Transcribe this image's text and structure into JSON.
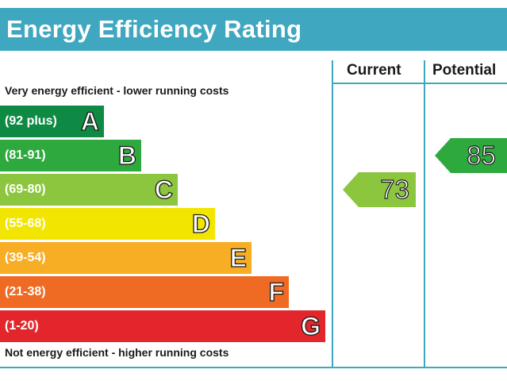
{
  "header": {
    "title": "Energy Efficiency Rating"
  },
  "columns": {
    "current_label": "Current",
    "potential_label": "Potential"
  },
  "captions": {
    "top": "Very energy efficient - lower running costs",
    "bottom": "Not energy efficient - higher running costs"
  },
  "colors": {
    "frame": "#3fa7bf"
  },
  "chart_data": {
    "type": "bar",
    "bands": [
      {
        "letter": "A",
        "range": "(92 plus)",
        "color": "#0f8a44"
      },
      {
        "letter": "B",
        "range": "(81-91)",
        "color": "#2ea93e"
      },
      {
        "letter": "C",
        "range": "(69-80)",
        "color": "#8cc63f"
      },
      {
        "letter": "D",
        "range": "(55-68)",
        "color": "#f2e600"
      },
      {
        "letter": "E",
        "range": "(39-54)",
        "color": "#f7ae24"
      },
      {
        "letter": "F",
        "range": "(21-38)",
        "color": "#ef6a22"
      },
      {
        "letter": "G",
        "range": "(1-20)",
        "color": "#e3262b"
      }
    ],
    "current": {
      "value": "73",
      "band": "C"
    },
    "potential": {
      "value": "85",
      "band": "B"
    }
  }
}
